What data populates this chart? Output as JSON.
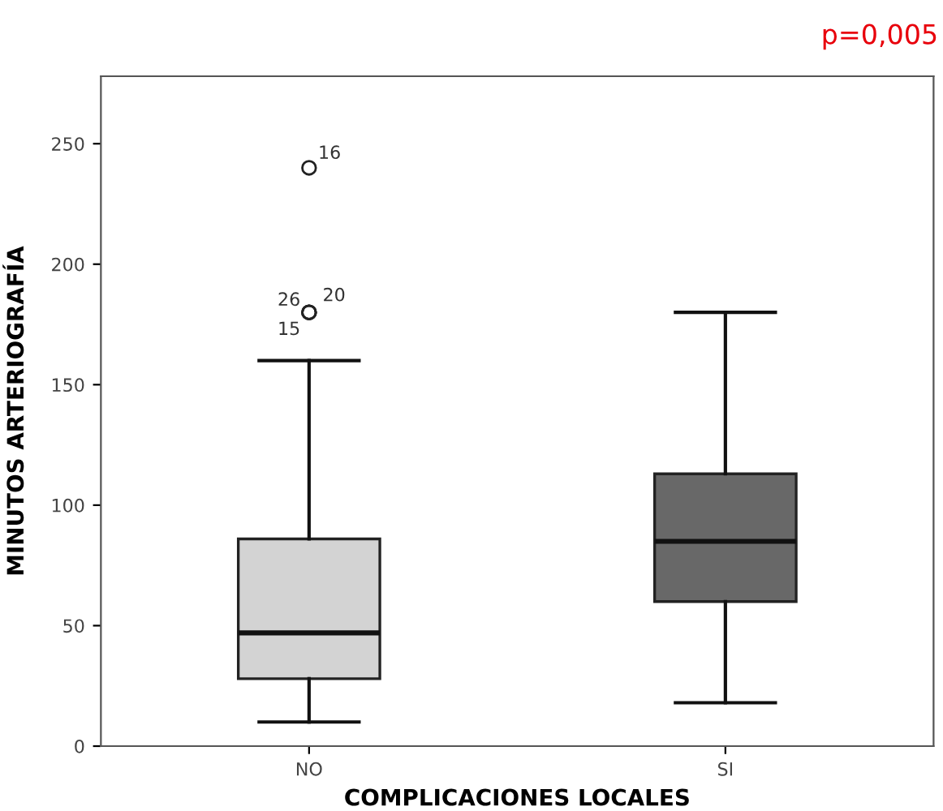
{
  "chart_data": {
    "type": "box",
    "xlabel": "COMPLICACIONES LOCALES",
    "ylabel": "MINUTOS ARTERIOGRAFÍA",
    "categories": [
      "NO",
      "SI"
    ],
    "colors": [
      "#d3d3d3",
      "#686868"
    ],
    "boxes": [
      {
        "low": 10,
        "q1": 28,
        "median": 47,
        "q3": 86,
        "high": 160,
        "outliers": [
          240,
          180,
          180,
          180
        ]
      },
      {
        "low": 18,
        "q1": 60,
        "median": 85,
        "q3": 113,
        "high": 180
      }
    ],
    "ylim": [
      0,
      278
    ],
    "yticks": [
      0,
      50,
      100,
      150,
      200,
      250
    ],
    "annotations": [
      "p=0,005",
      "16",
      "26",
      "20",
      "15"
    ]
  }
}
